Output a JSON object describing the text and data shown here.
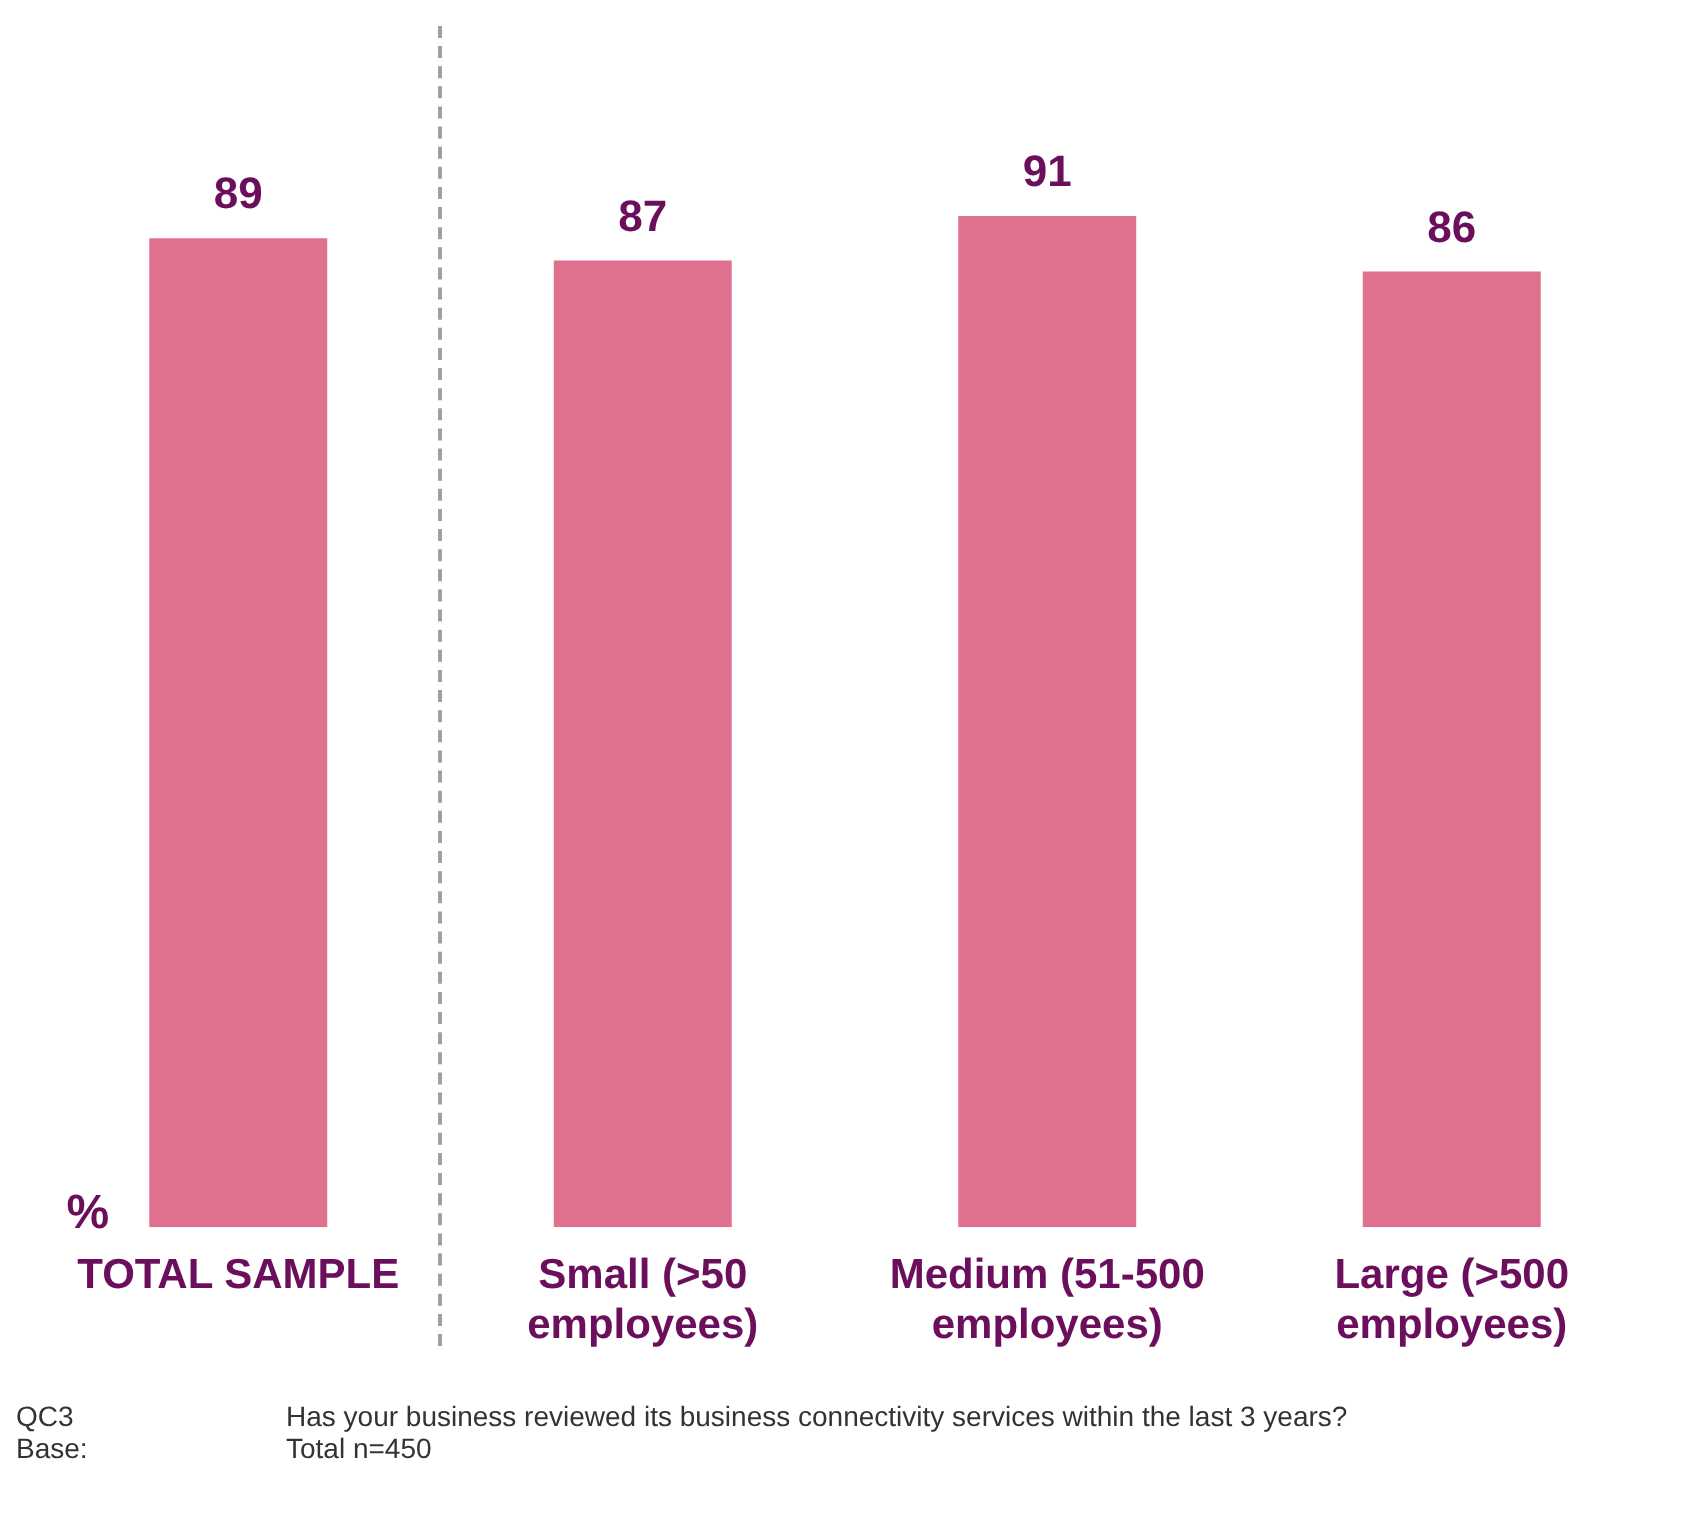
{
  "chart_data": {
    "type": "bar",
    "ylabel": "%",
    "categories": [
      "TOTAL SAMPLE",
      "Small (>50 employees)",
      "Medium (51-500 employees)",
      "Large (>500 employees)"
    ],
    "values": [
      89,
      87,
      91,
      86
    ],
    "color": "#e0718e",
    "data_labels": true,
    "grid": false,
    "legend": false,
    "annotations": [
      "QC3",
      "Has your business reviewed its business connectivity services within the last 3 years?",
      "Base:",
      "Total n=450"
    ]
  }
}
